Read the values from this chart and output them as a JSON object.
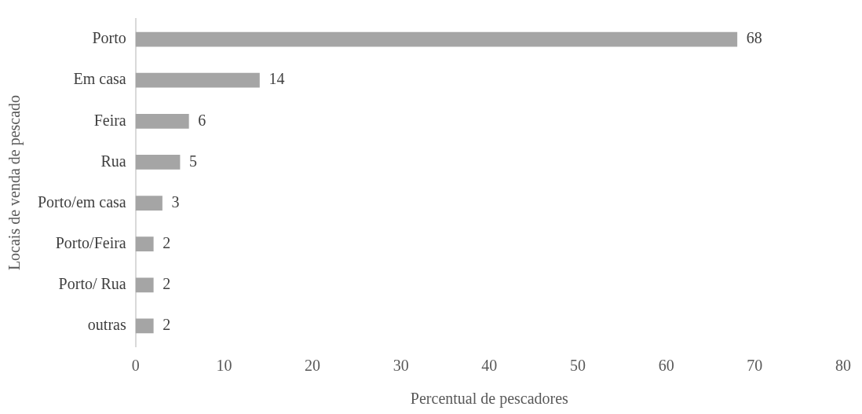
{
  "chart_data": {
    "type": "bar",
    "orientation": "horizontal",
    "xlabel": "Percentual de pescadores",
    "ylabel": "Locais de venda de pescado",
    "categories": [
      "Porto",
      "Em casa",
      "Feira",
      "Rua",
      "Porto/em casa",
      "Porto/Feira",
      "Porto/ Rua",
      "outras"
    ],
    "values": [
      68,
      14,
      6,
      5,
      3,
      2,
      2,
      2
    ],
    "color": "#a5a5a5",
    "xlim": [
      0,
      80
    ],
    "xticks": [
      0,
      10,
      20,
      30,
      40,
      50,
      60,
      70,
      80
    ],
    "grid": false,
    "legend": false,
    "data_labels": true
  }
}
